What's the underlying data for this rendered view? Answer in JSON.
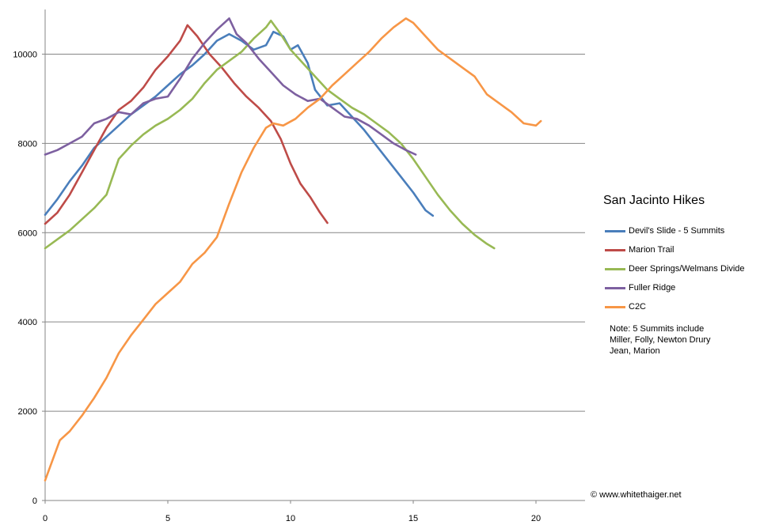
{
  "chart_data": {
    "type": "line",
    "title": "San Jacinto Hikes",
    "xlabel": "",
    "ylabel": "",
    "xlim": [
      0,
      22
    ],
    "ylim": [
      0,
      11000
    ],
    "x_ticks": [
      0,
      5,
      10,
      15,
      20
    ],
    "y_ticks": [
      0,
      2000,
      4000,
      6000,
      8000,
      10000
    ],
    "grid": "horizontal",
    "legend_position": "right",
    "series": [
      {
        "name": "Devil's Slide - 5 Summits",
        "color": "#4a7ebb",
        "x": [
          0,
          0.5,
          1,
          1.5,
          2,
          2.5,
          3,
          3.5,
          4,
          4.5,
          5,
          5.5,
          6,
          6.5,
          7,
          7.5,
          8,
          8.5,
          9,
          9.3,
          9.7,
          10,
          10.3,
          10.7,
          11,
          11.5,
          12,
          12.5,
          13,
          13.5,
          14,
          14.5,
          15,
          15.5,
          15.8
        ],
        "y": [
          6400,
          6750,
          7150,
          7500,
          7900,
          8150,
          8400,
          8650,
          8850,
          9050,
          9300,
          9550,
          9750,
          10000,
          10300,
          10450,
          10300,
          10100,
          10200,
          10500,
          10400,
          10100,
          10200,
          9800,
          9200,
          8850,
          8900,
          8600,
          8300,
          7950,
          7600,
          7250,
          6900,
          6500,
          6380
        ]
      },
      {
        "name": "Marion Trail",
        "color": "#be4b48",
        "x": [
          0,
          0.5,
          1,
          1.5,
          2,
          2.5,
          3,
          3.5,
          4,
          4.5,
          5,
          5.5,
          5.8,
          6.2,
          6.7,
          7.2,
          7.7,
          8.2,
          8.7,
          9.2,
          9.6,
          10,
          10.4,
          10.8,
          11.2,
          11.5
        ],
        "y": [
          6200,
          6450,
          6850,
          7350,
          7850,
          8350,
          8750,
          8950,
          9250,
          9650,
          9950,
          10300,
          10650,
          10400,
          10000,
          9700,
          9350,
          9050,
          8800,
          8500,
          8100,
          7550,
          7100,
          6800,
          6450,
          6220
        ]
      },
      {
        "name": "Deer Springs/Welmans Divide",
        "color": "#98b954",
        "x": [
          0,
          0.5,
          1,
          1.5,
          2,
          2.5,
          3,
          3.5,
          4,
          4.5,
          5,
          5.5,
          6,
          6.5,
          7,
          7.5,
          8,
          8.5,
          9,
          9.2,
          9.6,
          10,
          10.5,
          11,
          11.5,
          12,
          12.5,
          13,
          13.5,
          14,
          14.5,
          15,
          15.5,
          16,
          16.5,
          17,
          17.5,
          18,
          18.3
        ],
        "y": [
          5650,
          5850,
          6050,
          6300,
          6550,
          6850,
          7650,
          7950,
          8200,
          8400,
          8550,
          8750,
          9000,
          9350,
          9650,
          9850,
          10050,
          10350,
          10600,
          10750,
          10450,
          10100,
          9800,
          9500,
          9200,
          9000,
          8800,
          8650,
          8450,
          8250,
          8000,
          7650,
          7250,
          6850,
          6500,
          6200,
          5950,
          5750,
          5650
        ]
      },
      {
        "name": "Fuller Ridge",
        "color": "#7d60a0",
        "x": [
          0,
          0.5,
          1,
          1.5,
          2,
          2.5,
          3,
          3.5,
          4,
          4.5,
          5,
          5.5,
          6,
          6.5,
          7,
          7.5,
          7.8,
          8.2,
          8.7,
          9.2,
          9.7,
          10.2,
          10.7,
          11.2,
          11.7,
          12.2,
          12.7,
          13.2,
          13.7,
          14.2,
          14.7,
          15.1
        ],
        "y": [
          7750,
          7850,
          8000,
          8150,
          8450,
          8550,
          8700,
          8650,
          8900,
          9000,
          9050,
          9450,
          9900,
          10250,
          10550,
          10800,
          10450,
          10250,
          9900,
          9600,
          9300,
          9100,
          8950,
          9000,
          8800,
          8600,
          8550,
          8400,
          8200,
          8000,
          7850,
          7750
        ]
      },
      {
        "name": "C2C",
        "color": "#f79646",
        "x": [
          0,
          0.3,
          0.6,
          1,
          1.5,
          2,
          2.5,
          3,
          3.5,
          4,
          4.5,
          5,
          5.5,
          6,
          6.5,
          7,
          7.5,
          8,
          8.5,
          9,
          9.3,
          9.7,
          10.2,
          10.7,
          11.2,
          11.7,
          12.2,
          12.7,
          13.2,
          13.7,
          14.2,
          14.7,
          15,
          15.5,
          16,
          16.5,
          17,
          17.5,
          18,
          18.5,
          19,
          19.5,
          20,
          20.2
        ],
        "y": [
          450,
          900,
          1350,
          1550,
          1900,
          2300,
          2750,
          3300,
          3700,
          4050,
          4400,
          4650,
          4900,
          5300,
          5550,
          5900,
          6650,
          7350,
          7900,
          8350,
          8450,
          8400,
          8550,
          8800,
          9000,
          9300,
          9550,
          9800,
          10050,
          10350,
          10600,
          10800,
          10700,
          10400,
          10100,
          9900,
          9700,
          9500,
          9100,
          8900,
          8700,
          8450,
          8400,
          8500
        ]
      }
    ],
    "annotation": [
      "Note: 5 Summits include",
      "Miller, Folly, Newton Drury",
      "Jean, Marion"
    ],
    "copyright": "© www.whitethaiger.net"
  }
}
